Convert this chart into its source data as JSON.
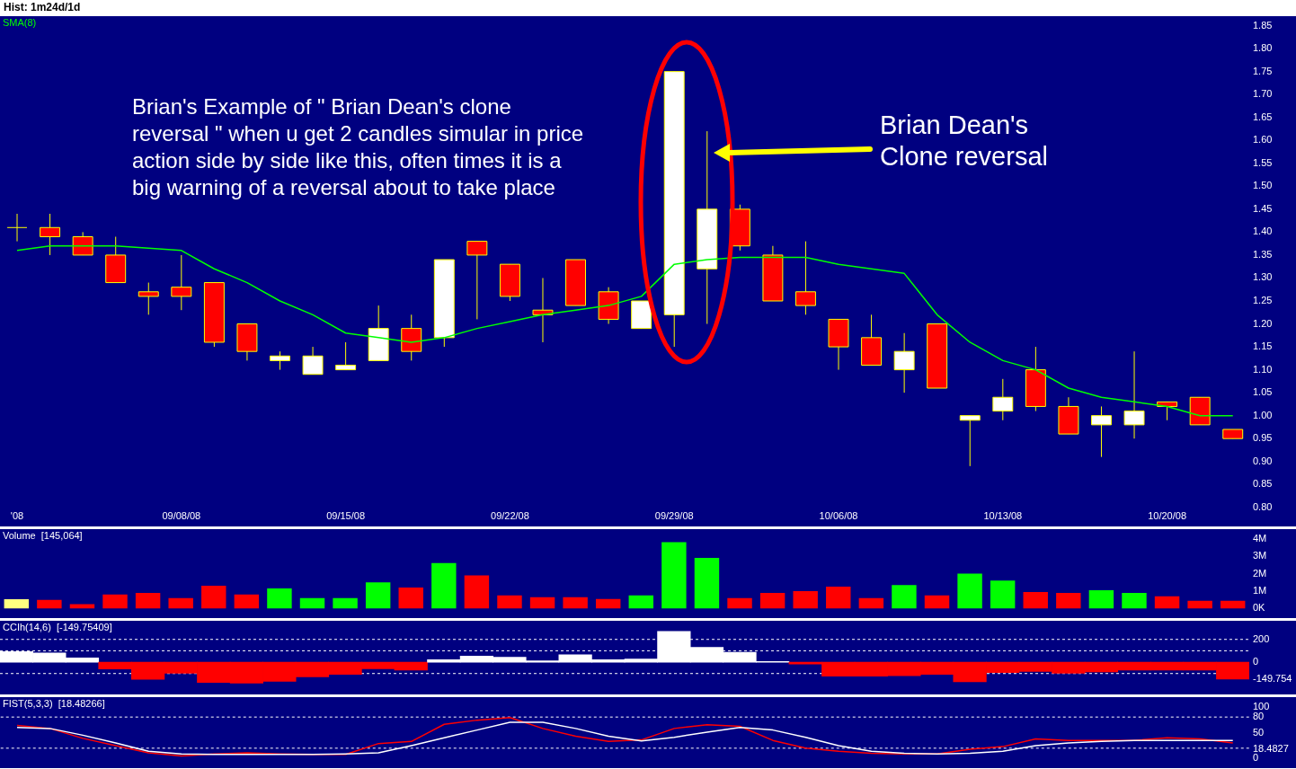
{
  "chart_data": [
    {
      "type": "candlestick",
      "title": "Hist: 1m24d/1d",
      "categories": [
        "'08",
        null,
        null,
        null,
        null,
        "09/08/08",
        null,
        null,
        null,
        null,
        "09/15/08",
        null,
        null,
        null,
        null,
        "09/22/08",
        null,
        null,
        null,
        null,
        "09/29/08",
        null,
        null,
        null,
        null,
        "10/06/08",
        null,
        null,
        null,
        null,
        "10/13/08",
        null,
        null,
        null,
        null,
        "10/20/08",
        null,
        null
      ],
      "ohlc": [
        [
          1.41,
          1.44,
          1.38,
          1.41
        ],
        [
          1.41,
          1.44,
          1.35,
          1.39
        ],
        [
          1.39,
          1.4,
          1.35,
          1.35
        ],
        [
          1.35,
          1.39,
          1.29,
          1.29
        ],
        [
          1.27,
          1.29,
          1.22,
          1.26
        ],
        [
          1.28,
          1.35,
          1.23,
          1.26
        ],
        [
          1.29,
          1.29,
          1.15,
          1.16
        ],
        [
          1.2,
          1.2,
          1.12,
          1.14
        ],
        [
          1.12,
          1.14,
          1.1,
          1.13
        ],
        [
          1.09,
          1.15,
          1.09,
          1.13
        ],
        [
          1.1,
          1.16,
          1.1,
          1.11
        ],
        [
          1.12,
          1.24,
          1.12,
          1.19
        ],
        [
          1.19,
          1.22,
          1.12,
          1.14
        ],
        [
          1.17,
          1.34,
          1.15,
          1.34
        ],
        [
          1.38,
          1.38,
          1.21,
          1.35
        ],
        [
          1.33,
          1.33,
          1.25,
          1.26
        ],
        [
          1.23,
          1.3,
          1.16,
          1.22
        ],
        [
          1.34,
          1.34,
          1.24,
          1.24
        ],
        [
          1.27,
          1.28,
          1.2,
          1.21
        ],
        [
          1.19,
          1.25,
          1.19,
          1.25
        ],
        [
          1.22,
          1.75,
          1.15,
          1.75
        ],
        [
          1.32,
          1.62,
          1.2,
          1.45
        ],
        [
          1.45,
          1.46,
          1.36,
          1.37
        ],
        [
          1.35,
          1.37,
          1.25,
          1.25
        ],
        [
          1.27,
          1.38,
          1.22,
          1.24
        ],
        [
          1.21,
          1.21,
          1.1,
          1.15
        ],
        [
          1.17,
          1.22,
          1.11,
          1.11
        ],
        [
          1.1,
          1.18,
          1.05,
          1.14
        ],
        [
          1.2,
          1.2,
          1.06,
          1.06
        ],
        [
          0.99,
          1.0,
          0.89,
          1.0
        ],
        [
          1.01,
          1.08,
          0.99,
          1.04
        ],
        [
          1.1,
          1.15,
          1.01,
          1.02
        ],
        [
          1.02,
          1.04,
          0.96,
          0.96
        ],
        [
          0.98,
          1.02,
          0.91,
          1.0
        ],
        [
          0.98,
          1.14,
          0.95,
          1.01
        ],
        [
          1.03,
          1.03,
          0.99,
          1.02
        ],
        [
          1.04,
          1.04,
          0.98,
          0.98
        ],
        [
          0.97,
          0.97,
          0.95,
          0.95
        ]
      ],
      "series": [
        {
          "name": "SMA(8)",
          "type": "line",
          "color": "#00ff00",
          "values": [
            1.36,
            1.37,
            1.37,
            1.37,
            1.365,
            1.36,
            1.32,
            1.29,
            1.25,
            1.22,
            1.18,
            1.17,
            1.16,
            1.17,
            1.19,
            1.205,
            1.22,
            1.23,
            1.24,
            1.26,
            1.33,
            1.34,
            1.345,
            1.345,
            1.345,
            1.33,
            1.32,
            1.31,
            1.22,
            1.16,
            1.12,
            1.1,
            1.06,
            1.04,
            1.03,
            1.02,
            1.0,
            1.0
          ]
        }
      ],
      "ylim": [
        0.8,
        1.85
      ],
      "yticks": [
        {
          "value": 0.8,
          "label": "0.80"
        },
        0.85,
        {
          "value": 0.9,
          "label": "0.90"
        },
        0.95,
        {
          "value": 1,
          "label": "1.00"
        },
        1.05,
        {
          "value": 1.1,
          "label": "1.10"
        },
        1.15,
        {
          "value": 1.2,
          "label": "1.20"
        },
        1.25,
        {
          "value": 1.3,
          "label": "1.30"
        },
        1.35,
        {
          "value": 1.4,
          "label": "1.40"
        },
        1.45,
        {
          "value": 1.5,
          "label": "1.50"
        },
        1.55,
        {
          "value": 1.6,
          "label": "1.60"
        },
        1.65,
        {
          "value": 1.7,
          "label": "1.70"
        },
        1.75,
        {
          "value": 1.8,
          "label": "1.80"
        },
        1.85
      ],
      "annotations": [
        "Brian's Example of \" Brian Dean's clone reversal \" when u get 2 candles simular in price action side by side like this, often times it is a big warning of a reversal about to take place",
        "Brian Dean's Clone reversal"
      ]
    },
    {
      "type": "bar",
      "title": "Volume  [145,064]",
      "tick_labels": "y",
      "categories": [
        null,
        null,
        null,
        null,
        null,
        null,
        null,
        null,
        null,
        null,
        null,
        null,
        null,
        null,
        null,
        null,
        null,
        null,
        null,
        null,
        null,
        null,
        null,
        null,
        null,
        null,
        null,
        null,
        null,
        null,
        null,
        null,
        null,
        null,
        null,
        null,
        null,
        null
      ],
      "values": [
        530000,
        500000,
        250000,
        800000,
        900000,
        600000,
        1300000,
        800000,
        1150000,
        600000,
        600000,
        1500000,
        1200000,
        2600000,
        1900000,
        750000,
        650000,
        650000,
        550000,
        750000,
        3800000,
        2900000,
        600000,
        900000,
        1000000,
        1250000,
        600000,
        1350000,
        750000,
        2000000,
        1600000,
        950000,
        900000,
        1050000,
        900000,
        700000,
        450000,
        450000
      ],
      "colors": [
        "#ffff80",
        "#ff0000",
        "#ff0000",
        "#ff0000",
        "#ff0000",
        "#ff0000",
        "#ff0000",
        "#ff0000",
        "#00ff00",
        "#00ff00",
        "#00ff00",
        "#00ff00",
        "#ff0000",
        "#00ff00",
        "#ff0000",
        "#ff0000",
        "#ff0000",
        "#ff0000",
        "#ff0000",
        "#00ff00",
        "#00ff00",
        "#00ff00",
        "#ff0000",
        "#ff0000",
        "#ff0000",
        "#ff0000",
        "#ff0000",
        "#00ff00",
        "#ff0000",
        "#00ff00",
        "#00ff00",
        "#ff0000",
        "#ff0000",
        "#00ff00",
        "#00ff00",
        "#ff0000",
        "#ff0000",
        "#ff0000"
      ],
      "ylim": [
        0,
        4000000
      ],
      "yticks": [
        {
          "value": 0,
          "label": "0K"
        },
        {
          "value": 1000000,
          "label": "1M"
        },
        {
          "value": 2000000,
          "label": "2M"
        },
        {
          "value": 3000000,
          "label": "3M"
        },
        {
          "value": 4000000,
          "label": "4M"
        }
      ]
    },
    {
      "type": "bar",
      "title": "CCIh(14,6)  [-149.75409]",
      "tick_labels": "y",
      "categories": [
        null,
        null,
        null,
        null,
        null,
        null,
        null,
        null,
        null,
        null,
        null,
        null,
        null,
        null,
        null,
        null,
        null,
        null,
        null,
        null,
        null,
        null,
        null,
        null,
        null,
        null,
        null,
        null,
        null,
        null,
        null,
        null,
        null,
        null,
        null,
        null,
        null,
        null
      ],
      "values": [
        92,
        81,
        38,
        -60,
        -150,
        -97,
        -178,
        -184,
        -168,
        -130,
        -108,
        -59,
        -70,
        22,
        54,
        43,
        11,
        65,
        22,
        27,
        270,
        130,
        86,
        5,
        -16,
        -124,
        -124,
        -119,
        -108,
        -173,
        -92,
        -81,
        -97,
        -86,
        -70,
        -70,
        -70,
        -149.754
      ],
      "colors": [
        "#ffffff",
        "#ffffff",
        "#ffffff",
        "#ff0000",
        "#ff0000",
        "#ff0000",
        "#ff0000",
        "#ff0000",
        "#ff0000",
        "#ff0000",
        "#ff0000",
        "#ff0000",
        "#ff0000",
        "#ffffff",
        "#ffffff",
        "#ffffff",
        "#ffffff",
        "#ffffff",
        "#ffffff",
        "#ffffff",
        "#ffffff",
        "#ffffff",
        "#ffffff",
        "#ffffff",
        "#ff0000",
        "#ff0000",
        "#ff0000",
        "#ff0000",
        "#ff0000",
        "#ff0000",
        "#ff0000",
        "#ff0000",
        "#ff0000",
        "#ff0000",
        "#ff0000",
        "#ff0000",
        "#ff0000",
        "#ff0000"
      ],
      "ylim": [
        -200,
        280
      ],
      "yticks": [
        {
          "value": -149.754,
          "label": "-149.754"
        },
        0,
        200
      ],
      "ref_lines": [
        {
          "axis": "y",
          "value": 200,
          "color": "#ffffff",
          "line_style": "dashed"
        },
        {
          "axis": "y",
          "value": 100,
          "color": "#ffffff",
          "line_style": "dashed"
        },
        {
          "axis": "y",
          "value": -100,
          "color": "#ffffff",
          "line_style": "dashed"
        }
      ]
    },
    {
      "type": "line",
      "title": "FIST(5,3,3)  [18.48266]",
      "tick_labels": "y",
      "categories": [
        null,
        null,
        null,
        null,
        null,
        null,
        null,
        null,
        null,
        null,
        null,
        null,
        null,
        null,
        null,
        null,
        null,
        null,
        null,
        null,
        null,
        null,
        null,
        null,
        null,
        null,
        null,
        null,
        null,
        null,
        null,
        null,
        null,
        null,
        null,
        null,
        null,
        null
      ],
      "series": [
        {
          "color": "#ffffff",
          "values": [
            60,
            58,
            45,
            30,
            14,
            9,
            8,
            8,
            8,
            8,
            9,
            11,
            25,
            40,
            55,
            70,
            70,
            58,
            43,
            34,
            41,
            51,
            60,
            55,
            41,
            25,
            14,
            10,
            9,
            10,
            14,
            25,
            30,
            33,
            35,
            35,
            35,
            35
          ]
        },
        {
          "color": "#ff0000",
          "values": [
            64,
            58,
            39,
            25,
            11,
            5,
            9,
            11,
            9,
            8,
            8,
            29,
            33,
            66,
            74,
            79,
            58,
            43,
            33,
            36,
            58,
            65,
            62,
            35,
            20,
            14,
            10,
            9,
            9,
            18,
            23,
            38,
            35,
            35,
            35,
            40,
            38,
            30
          ]
        }
      ],
      "ylim": [
        0,
        100
      ],
      "yticks": [
        0,
        {
          "value": 18.4827,
          "label": "18.4827"
        },
        50,
        80,
        100
      ],
      "ref_lines": [
        {
          "axis": "y",
          "value": 80,
          "color": "#ffffff",
          "line_style": "dashed"
        },
        {
          "axis": "y",
          "value": 20,
          "color": "#ffffff",
          "line_style": "dashed"
        }
      ]
    }
  ]
}
